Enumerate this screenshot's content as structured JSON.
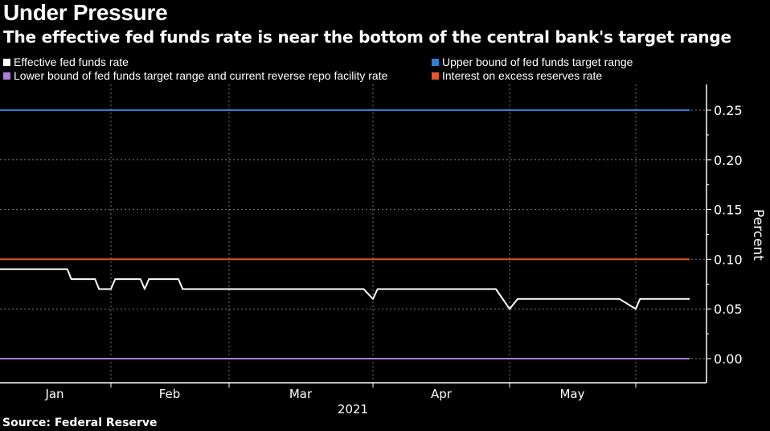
{
  "chart_data": {
    "type": "line",
    "title": "Under Pressure",
    "subtitle": "The effective fed funds rate is near the bottom of the central bank's target range",
    "ylabel": "Percent",
    "xlabel": "2021",
    "ylim": [
      -0.0125,
      0.275
    ],
    "yticks": [
      "0.00",
      "0.05",
      "0.10",
      "0.15",
      "0.20",
      "0.25"
    ],
    "ytick_values": [
      0,
      0.05,
      0.1,
      0.15,
      0.2,
      0.25
    ],
    "xtick_labels": [
      "Jan",
      "Feb",
      "Mar",
      "Apr",
      "May"
    ],
    "grid": true,
    "legend_position": "top",
    "series": [
      {
        "name": "Effective fed funds rate",
        "color": "#ffffff",
        "points": [
          [
            "2021-01-04",
            0.09
          ],
          [
            "2021-01-21",
            0.09
          ],
          [
            "2021-01-22",
            0.08
          ],
          [
            "2021-01-28",
            0.08
          ],
          [
            "2021-01-29",
            0.07
          ],
          [
            "2021-02-01",
            0.07
          ],
          [
            "2021-02-02",
            0.08
          ],
          [
            "2021-02-08",
            0.08
          ],
          [
            "2021-02-09",
            0.07
          ],
          [
            "2021-02-10",
            0.08
          ],
          [
            "2021-02-17",
            0.08
          ],
          [
            "2021-02-18",
            0.07
          ],
          [
            "2021-03-30",
            0.07
          ],
          [
            "2021-04-01",
            0.06
          ],
          [
            "2021-04-02",
            0.07
          ],
          [
            "2021-04-28",
            0.07
          ],
          [
            "2021-05-01",
            0.05
          ],
          [
            "2021-05-03",
            0.06
          ],
          [
            "2021-05-28",
            0.06
          ],
          [
            "2021-06-01",
            0.05
          ],
          [
            "2021-06-02",
            0.06
          ],
          [
            "2021-06-14",
            0.06
          ]
        ]
      },
      {
        "name": "Upper bound of fed funds target range",
        "color": "#2f7ed8",
        "points": [
          [
            "2021-01-04",
            0.25
          ],
          [
            "2021-06-14",
            0.25
          ]
        ]
      },
      {
        "name": "Lower bound of fed funds target range and current reverse repo facility rate",
        "color": "#a77fd6",
        "points": [
          [
            "2021-01-04",
            0.0
          ],
          [
            "2021-06-14",
            0.0
          ]
        ]
      },
      {
        "name": "Interest on excess reserves rate",
        "color": "#e8552b",
        "points": [
          [
            "2021-01-04",
            0.1
          ],
          [
            "2021-06-14",
            0.1
          ]
        ]
      }
    ]
  },
  "source": "Source: Federal Reserve"
}
